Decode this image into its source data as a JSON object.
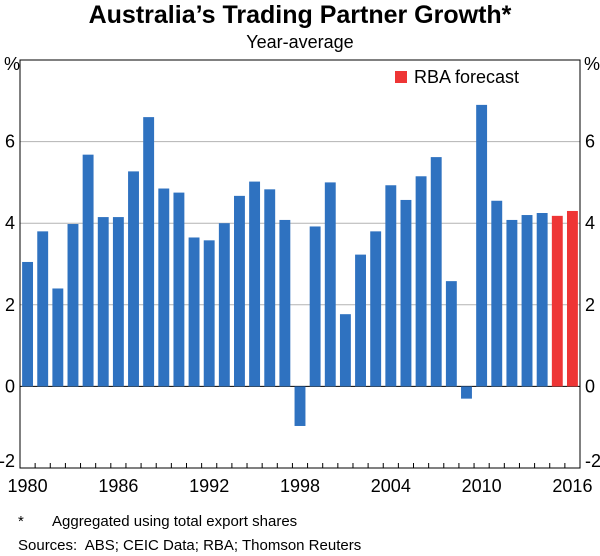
{
  "title": "Australia’s Trading Partner Growth*",
  "subtitle": "Year-average",
  "footnote": {
    "mark": "*",
    "text": "Aggregated using total export shares"
  },
  "sources": "Sources:  ABS; CEIC Data; RBA; Thomson Reuters",
  "chart_data": {
    "type": "bar",
    "unit_left": "%",
    "unit_right": "%",
    "ylim": [
      -2,
      8
    ],
    "yticks": [
      -2,
      0,
      2,
      4,
      6
    ],
    "xticks": [
      "1980",
      "1986",
      "1992",
      "1998",
      "2004",
      "2010",
      "2016"
    ],
    "categories": [
      1980,
      1981,
      1982,
      1983,
      1984,
      1985,
      1986,
      1987,
      1988,
      1989,
      1990,
      1991,
      1992,
      1993,
      1994,
      1995,
      1996,
      1997,
      1998,
      1999,
      2000,
      2001,
      2002,
      2003,
      2004,
      2005,
      2006,
      2007,
      2008,
      2009,
      2010,
      2011,
      2012,
      2013,
      2014,
      2015,
      2016
    ],
    "values": [
      3.05,
      3.8,
      2.4,
      3.98,
      5.68,
      4.15,
      4.15,
      5.27,
      6.6,
      4.85,
      4.75,
      3.65,
      3.58,
      4.0,
      4.67,
      5.02,
      4.83,
      4.08,
      -0.97,
      3.92,
      5.0,
      1.77,
      3.23,
      3.8,
      4.93,
      4.57,
      5.15,
      5.62,
      2.58,
      -0.3,
      6.9,
      4.55,
      4.08,
      4.2,
      4.25,
      4.18,
      4.3
    ],
    "forecast_from": 2015,
    "legend": {
      "label": "RBA forecast",
      "position": "top-right"
    },
    "grid": true,
    "colors": {
      "actual": "#2f72c0",
      "forecast": "#ee3535",
      "grid": "#b3b3b3",
      "axis": "#000000"
    }
  }
}
